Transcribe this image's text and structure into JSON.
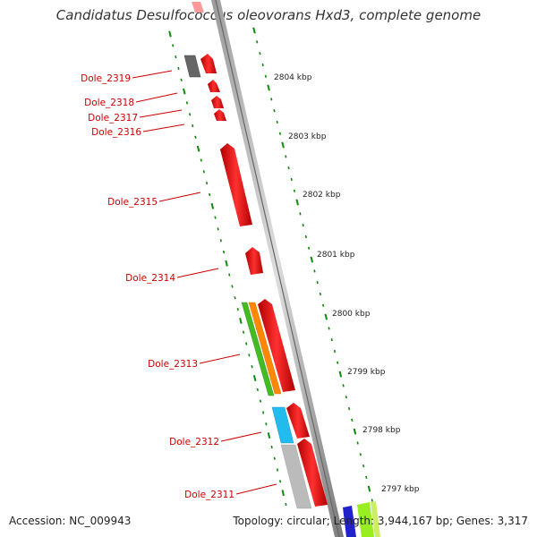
{
  "title": "Candidatus Desulfococcus oleovorans Hxd3, complete genome",
  "accession_text": "Accession: NC_009943",
  "topology_text": "Topology: circular; Length: 3,944,167 bp; Genes: 3,317",
  "ticks": [
    {
      "label": "2804 kbp"
    },
    {
      "label": "2803 kbp"
    },
    {
      "label": "2802 kbp"
    },
    {
      "label": "2801 kbp"
    },
    {
      "label": "2800 kbp"
    },
    {
      "label": "2799 kbp"
    },
    {
      "label": "2798 kbp"
    },
    {
      "label": "2797 kbp"
    }
  ],
  "genes": [
    {
      "label": "Dole_2319",
      "color": "#e00000"
    },
    {
      "label": "Dole_2318",
      "color": "#e00000"
    },
    {
      "label": "Dole_2317",
      "color": "#e00000"
    },
    {
      "label": "Dole_2316",
      "color": "#e00000"
    },
    {
      "label": "Dole_2315",
      "color": "#e00000"
    },
    {
      "label": "Dole_2314",
      "color": "#e00000"
    },
    {
      "label": "Dole_2313",
      "color": "#e00000"
    },
    {
      "label": "Dole_2312",
      "color": "#e00000"
    },
    {
      "label": "Dole_2311",
      "color": "#e00000"
    }
  ],
  "colors": {
    "forward_gene": "#e00000",
    "gray_feature": "#666666",
    "green_feature": "#44bb22",
    "orange_feature": "#ff8800",
    "cyan_feature": "#22bbee",
    "light_gray_feature": "#bbbbbb",
    "tick_green": "#118811",
    "backbone": "#888888",
    "label_red": "#cc0000"
  }
}
